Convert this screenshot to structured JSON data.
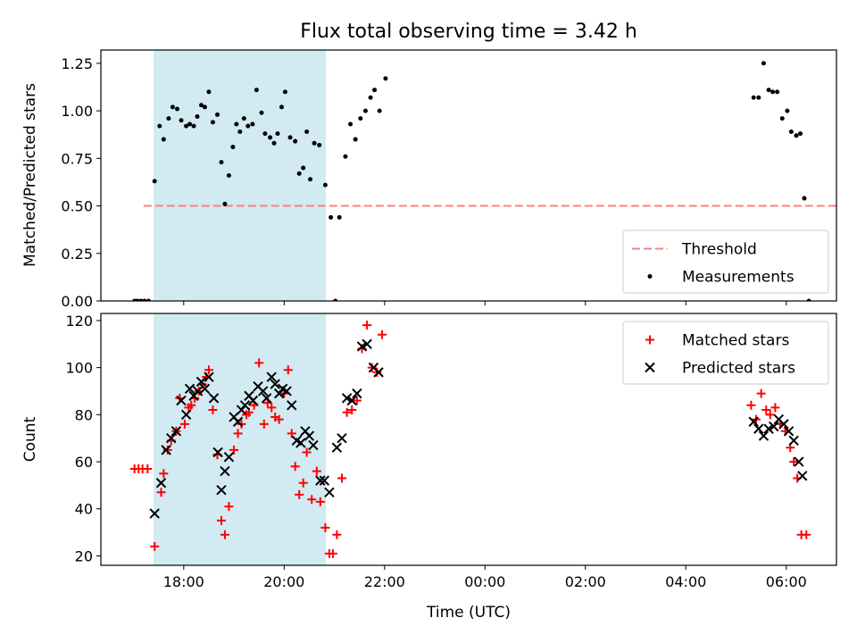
{
  "chart_data": {
    "type": "scatter",
    "title": "Flux total observing time = 3.42 h",
    "xlabel": "Time (UTC)",
    "x_unit": "hours since 00:00 on the first day (times after midnight > 24)",
    "xlim": [
      16.35,
      31.0
    ],
    "x_ticks": [
      18,
      20,
      22,
      24,
      26,
      28,
      30
    ],
    "x_tick_labels": [
      "18:00",
      "20:00",
      "22:00",
      "00:00",
      "02:00",
      "04:00",
      "06:00"
    ],
    "shaded_interval": {
      "x": [
        17.4,
        20.83
      ],
      "color": "#add8e6"
    },
    "panels": [
      {
        "ylabel": "Matched/Predicted stars",
        "ylim": [
          0,
          1.32
        ],
        "y_ticks": [
          0.0,
          0.25,
          0.5,
          0.75,
          1.0,
          1.25
        ],
        "y_tick_labels": [
          "0.00",
          "0.25",
          "0.50",
          "0.75",
          "1.00",
          "1.25"
        ],
        "legend_position": "lower right",
        "series": [
          {
            "name": "Threshold",
            "kind": "line",
            "style": "dashed",
            "color": "#ff7f7f",
            "x": [
              17.2,
              31.0
            ],
            "y": [
              0.5,
              0.5
            ]
          },
          {
            "name": "Measurements",
            "kind": "dot",
            "color": "#000000",
            "points": [
              [
                17.02,
                0
              ],
              [
                17.08,
                0
              ],
              [
                17.15,
                0
              ],
              [
                17.22,
                0
              ],
              [
                17.3,
                0
              ],
              [
                17.42,
                0.63
              ],
              [
                17.52,
                0.92
              ],
              [
                17.6,
                0.85
              ],
              [
                17.7,
                0.96
              ],
              [
                17.78,
                1.02
              ],
              [
                17.87,
                1.01
              ],
              [
                17.95,
                0.95
              ],
              [
                18.05,
                0.92
              ],
              [
                18.12,
                0.93
              ],
              [
                18.2,
                0.92
              ],
              [
                18.27,
                0.97
              ],
              [
                18.35,
                1.03
              ],
              [
                18.42,
                1.02
              ],
              [
                18.5,
                1.1
              ],
              [
                18.58,
                0.94
              ],
              [
                18.67,
                0.98
              ],
              [
                18.75,
                0.73
              ],
              [
                18.82,
                0.51
              ],
              [
                18.9,
                0.66
              ],
              [
                18.98,
                0.81
              ],
              [
                19.05,
                0.93
              ],
              [
                19.12,
                0.89
              ],
              [
                19.2,
                0.96
              ],
              [
                19.28,
                0.92
              ],
              [
                19.37,
                0.93
              ],
              [
                19.45,
                1.11
              ],
              [
                19.55,
                0.99
              ],
              [
                19.62,
                0.88
              ],
              [
                19.72,
                0.86
              ],
              [
                19.8,
                0.83
              ],
              [
                19.87,
                0.88
              ],
              [
                19.95,
                1.02
              ],
              [
                20.02,
                1.1
              ],
              [
                20.12,
                0.86
              ],
              [
                20.22,
                0.84
              ],
              [
                20.3,
                0.67
              ],
              [
                20.38,
                0.7
              ],
              [
                20.45,
                0.89
              ],
              [
                20.52,
                0.64
              ],
              [
                20.6,
                0.83
              ],
              [
                20.7,
                0.82
              ],
              [
                20.82,
                0.61
              ],
              [
                20.93,
                0.44
              ],
              [
                21.02,
                0
              ],
              [
                21.1,
                0.44
              ],
              [
                21.22,
                0.76
              ],
              [
                21.32,
                0.93
              ],
              [
                21.42,
                0.85
              ],
              [
                21.52,
                0.96
              ],
              [
                21.62,
                1.0
              ],
              [
                21.72,
                1.07
              ],
              [
                21.8,
                1.11
              ],
              [
                21.9,
                1.0
              ],
              [
                22.02,
                1.17
              ],
              [
                29.35,
                1.07
              ],
              [
                29.45,
                1.07
              ],
              [
                29.55,
                1.25
              ],
              [
                29.65,
                1.11
              ],
              [
                29.73,
                1.1
              ],
              [
                29.82,
                1.1
              ],
              [
                29.92,
                0.96
              ],
              [
                30.02,
                1.0
              ],
              [
                30.1,
                0.89
              ],
              [
                30.2,
                0.87
              ],
              [
                30.28,
                0.88
              ],
              [
                30.36,
                0.54
              ],
              [
                30.45,
                0.0
              ]
            ]
          }
        ]
      },
      {
        "ylabel": "Count",
        "ylim": [
          16,
          123
        ],
        "y_ticks": [
          20,
          40,
          60,
          80,
          100,
          120
        ],
        "y_tick_labels": [
          "20",
          "40",
          "60",
          "80",
          "100",
          "120"
        ],
        "legend_position": "upper right",
        "series": [
          {
            "name": "Matched stars",
            "kind": "plus",
            "color": "#ff0000",
            "points": [
              [
                17.02,
                57
              ],
              [
                17.1,
                57
              ],
              [
                17.18,
                57
              ],
              [
                17.28,
                57
              ],
              [
                17.42,
                24
              ],
              [
                17.55,
                47
              ],
              [
                17.6,
                55
              ],
              [
                17.68,
                65
              ],
              [
                17.75,
                69
              ],
              [
                17.85,
                73
              ],
              [
                17.92,
                87
              ],
              [
                18.02,
                76
              ],
              [
                18.1,
                83
              ],
              [
                18.15,
                84
              ],
              [
                18.22,
                87
              ],
              [
                18.3,
                90
              ],
              [
                18.37,
                93
              ],
              [
                18.45,
                96
              ],
              [
                18.5,
                99
              ],
              [
                18.58,
                82
              ],
              [
                18.67,
                63
              ],
              [
                18.75,
                35
              ],
              [
                18.82,
                29
              ],
              [
                18.9,
                41
              ],
              [
                19.0,
                65
              ],
              [
                19.08,
                72
              ],
              [
                19.15,
                76
              ],
              [
                19.25,
                80
              ],
              [
                19.3,
                81
              ],
              [
                19.4,
                84
              ],
              [
                19.5,
                102
              ],
              [
                19.6,
                76
              ],
              [
                19.67,
                85
              ],
              [
                19.75,
                83
              ],
              [
                19.82,
                79
              ],
              [
                19.9,
                78
              ],
              [
                20.0,
                89
              ],
              [
                20.08,
                99
              ],
              [
                20.15,
                72
              ],
              [
                20.22,
                58
              ],
              [
                20.3,
                46
              ],
              [
                20.38,
                51
              ],
              [
                20.45,
                64
              ],
              [
                20.55,
                44
              ],
              [
                20.65,
                56
              ],
              [
                20.72,
                43
              ],
              [
                20.82,
                32
              ],
              [
                20.9,
                21
              ],
              [
                20.97,
                21
              ],
              [
                21.05,
                29
              ],
              [
                21.15,
                53
              ],
              [
                21.25,
                81
              ],
              [
                21.35,
                82
              ],
              [
                21.45,
                86
              ],
              [
                21.55,
                108
              ],
              [
                21.65,
                118
              ],
              [
                21.75,
                100
              ],
              [
                21.85,
                98
              ],
              [
                21.95,
                114
              ],
              [
                29.3,
                84
              ],
              [
                29.4,
                78
              ],
              [
                29.5,
                89
              ],
              [
                29.6,
                82
              ],
              [
                29.68,
                80
              ],
              [
                29.78,
                83
              ],
              [
                29.88,
                76
              ],
              [
                29.98,
                73
              ],
              [
                30.08,
                66
              ],
              [
                30.15,
                60
              ],
              [
                30.22,
                53
              ],
              [
                30.3,
                29
              ],
              [
                30.4,
                29
              ]
            ]
          },
          {
            "name": "Predicted stars",
            "kind": "x",
            "color": "#000000",
            "points": [
              [
                17.42,
                38
              ],
              [
                17.55,
                51
              ],
              [
                17.65,
                65
              ],
              [
                17.75,
                70
              ],
              [
                17.85,
                73
              ],
              [
                17.95,
                86
              ],
              [
                18.05,
                80
              ],
              [
                18.12,
                91
              ],
              [
                18.2,
                88
              ],
              [
                18.28,
                90
              ],
              [
                18.35,
                94
              ],
              [
                18.42,
                91
              ],
              [
                18.5,
                96
              ],
              [
                18.6,
                87
              ],
              [
                18.68,
                64
              ],
              [
                18.75,
                48
              ],
              [
                18.82,
                56
              ],
              [
                18.9,
                62
              ],
              [
                19.0,
                79
              ],
              [
                19.08,
                77
              ],
              [
                19.15,
                82
              ],
              [
                19.22,
                84
              ],
              [
                19.3,
                88
              ],
              [
                19.38,
                86
              ],
              [
                19.48,
                92
              ],
              [
                19.58,
                90
              ],
              [
                19.65,
                87
              ],
              [
                19.75,
                96
              ],
              [
                19.82,
                93
              ],
              [
                19.9,
                89
              ],
              [
                19.97,
                91
              ],
              [
                20.05,
                90
              ],
              [
                20.15,
                84
              ],
              [
                20.25,
                69
              ],
              [
                20.33,
                68
              ],
              [
                20.42,
                73
              ],
              [
                20.5,
                71
              ],
              [
                20.58,
                67
              ],
              [
                20.72,
                52
              ],
              [
                20.8,
                52
              ],
              [
                20.9,
                47
              ],
              [
                21.05,
                66
              ],
              [
                21.15,
                70
              ],
              [
                21.25,
                87
              ],
              [
                21.35,
                86
              ],
              [
                21.45,
                89
              ],
              [
                21.55,
                109
              ],
              [
                21.65,
                110
              ],
              [
                21.78,
                100
              ],
              [
                21.88,
                98
              ],
              [
                29.35,
                77
              ],
              [
                29.45,
                74
              ],
              [
                29.55,
                71
              ],
              [
                29.65,
                74
              ],
              [
                29.75,
                75
              ],
              [
                29.85,
                78
              ],
              [
                29.95,
                76
              ],
              [
                30.05,
                73
              ],
              [
                30.15,
                69
              ],
              [
                30.25,
                60
              ],
              [
                30.32,
                54
              ]
            ]
          }
        ]
      }
    ]
  }
}
